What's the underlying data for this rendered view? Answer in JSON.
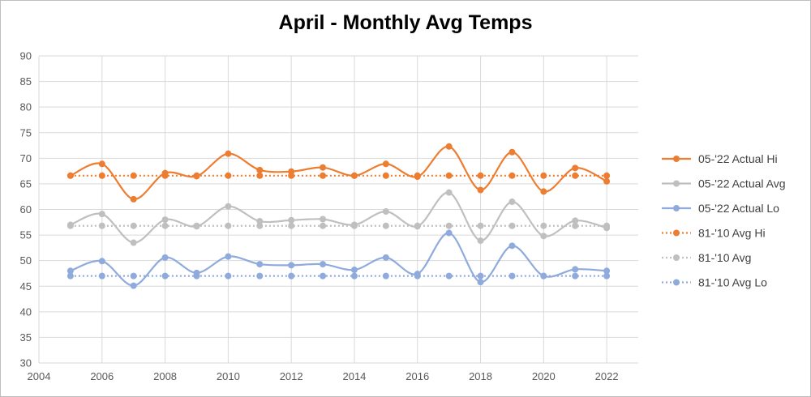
{
  "chart_data": {
    "type": "line",
    "title": "April - Monthly Avg Temps",
    "xlabel": "",
    "ylabel": "",
    "xlim": [
      2004,
      2023
    ],
    "ylim": [
      30,
      90
    ],
    "x_ticks": [
      2004,
      2006,
      2008,
      2010,
      2012,
      2014,
      2016,
      2018,
      2020,
      2022
    ],
    "y_ticks": [
      30,
      35,
      40,
      45,
      50,
      55,
      60,
      65,
      70,
      75,
      80,
      85,
      90
    ],
    "grid": true,
    "legend_position": "right",
    "x": [
      2005,
      2006,
      2007,
      2008,
      2009,
      2010,
      2011,
      2012,
      2013,
      2014,
      2015,
      2016,
      2017,
      2018,
      2019,
      2020,
      2021,
      2022
    ],
    "series": [
      {
        "name": "05-'22 Actual Hi",
        "color": "#ED7D31",
        "style": "solid-smooth",
        "values": [
          66.6,
          68.9,
          62.0,
          67.1,
          66.5,
          70.9,
          67.7,
          67.4,
          68.2,
          66.6,
          68.9,
          66.4,
          72.3,
          63.8,
          71.2,
          63.5,
          68.1,
          65.5
        ]
      },
      {
        "name": "05-'22 Actual Avg",
        "color": "#BFBFBF",
        "style": "solid-smooth",
        "values": [
          57.0,
          59.1,
          53.5,
          58.0,
          56.7,
          60.6,
          57.7,
          57.9,
          58.1,
          57.0,
          59.6,
          56.7,
          63.3,
          53.9,
          61.5,
          54.8,
          57.8,
          56.4
        ]
      },
      {
        "name": "05-'22 Actual Lo",
        "color": "#8FAADC",
        "style": "solid-smooth",
        "values": [
          48.0,
          49.9,
          45.1,
          50.6,
          47.6,
          50.8,
          49.3,
          49.1,
          49.3,
          48.2,
          50.6,
          47.4,
          55.4,
          45.8,
          52.9,
          47.0,
          48.3,
          48.0
        ]
      },
      {
        "name": "81-'10 Avg Hi",
        "color": "#ED7D31",
        "style": "dotted",
        "values": [
          66.6,
          66.6,
          66.6,
          66.6,
          66.6,
          66.6,
          66.6,
          66.6,
          66.6,
          66.6,
          66.6,
          66.6,
          66.6,
          66.6,
          66.6,
          66.6,
          66.6,
          66.6
        ]
      },
      {
        "name": "81-'10 Avg",
        "color": "#BFBFBF",
        "style": "dotted",
        "values": [
          56.8,
          56.8,
          56.8,
          56.8,
          56.8,
          56.8,
          56.8,
          56.8,
          56.8,
          56.8,
          56.8,
          56.8,
          56.8,
          56.8,
          56.8,
          56.8,
          56.8,
          56.8
        ]
      },
      {
        "name": "81-'10 Avg Lo",
        "color": "#8FAADC",
        "style": "dotted",
        "values": [
          47.0,
          47.0,
          47.0,
          47.0,
          47.0,
          47.0,
          47.0,
          47.0,
          47.0,
          47.0,
          47.0,
          47.0,
          47.0,
          47.0,
          47.0,
          47.0,
          47.0,
          47.0
        ]
      }
    ]
  }
}
